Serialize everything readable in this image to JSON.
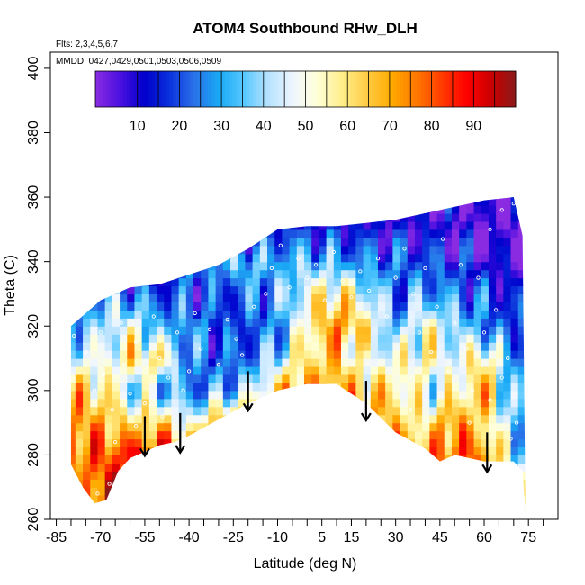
{
  "chart_data": {
    "type": "heatmap",
    "title": "ATOM4 Southbound RHw_DLH",
    "flights_label": "Flts: 2,3,4,5,6,7",
    "dates_label": "MMDD: 0427,0429,0501,0503,0506,0509",
    "xlabel": "Latitude (deg N)",
    "ylabel": "Theta (C)",
    "xlim": [
      -87,
      85
    ],
    "ylim": [
      260,
      405
    ],
    "x_tick_labels": [
      "-85",
      "-70",
      "-55",
      "-40",
      "-25",
      "-10",
      "5",
      "15",
      "30",
      "45",
      "60",
      "75"
    ],
    "x_ticks": [
      -85,
      -70,
      -55,
      -40,
      -25,
      -10,
      5,
      15,
      30,
      45,
      60,
      75
    ],
    "x_minor_ticks": [
      -80,
      -75,
      -65,
      -60,
      -50,
      -45,
      -35,
      -30,
      -20,
      -15,
      -5,
      0,
      10,
      20,
      25,
      35,
      40,
      50,
      55,
      65,
      70,
      80
    ],
    "y_tick_labels": [
      "260",
      "280",
      "300",
      "320",
      "340",
      "360",
      "380",
      "400"
    ],
    "y_ticks": [
      260,
      280,
      300,
      320,
      340,
      360,
      380,
      400
    ],
    "colorbar": {
      "range": [
        0,
        100
      ],
      "tick_labels": [
        "10",
        "20",
        "30",
        "40",
        "50",
        "60",
        "70",
        "80",
        "90"
      ],
      "ticks": [
        10,
        20,
        30,
        40,
        50,
        60,
        70,
        80,
        90
      ],
      "colors": [
        "#8a2be2",
        "#4b10e0",
        "#0000cc",
        "#0a32dc",
        "#2a70e8",
        "#19a9f5",
        "#56c8ff",
        "#b6e2ff",
        "#f0f6ff",
        "#ffffd6",
        "#ffee88",
        "#ffcc44",
        "#ffaa00",
        "#ff7700",
        "#ff3c00",
        "#ff0000",
        "#cc0000",
        "#8b1a1a"
      ]
    },
    "top_boundary": [
      [
        -80,
        320
      ],
      [
        -70,
        328
      ],
      [
        -60,
        332
      ],
      [
        -50,
        333
      ],
      [
        -40,
        336
      ],
      [
        -30,
        339
      ],
      [
        -20,
        344
      ],
      [
        -10,
        350
      ],
      [
        0,
        351
      ],
      [
        10,
        351
      ],
      [
        20,
        352
      ],
      [
        30,
        353
      ],
      [
        40,
        355
      ],
      [
        50,
        357
      ],
      [
        60,
        359
      ],
      [
        70,
        360
      ],
      [
        73,
        348
      ]
    ],
    "bottom_boundary": [
      [
        -80,
        277
      ],
      [
        -76,
        270
      ],
      [
        -72,
        265
      ],
      [
        -68,
        266
      ],
      [
        -64,
        275
      ],
      [
        -60,
        279
      ],
      [
        -55,
        281
      ],
      [
        -50,
        283
      ],
      [
        -45,
        284
      ],
      [
        -40,
        286
      ],
      [
        -30,
        291
      ],
      [
        -20,
        296
      ],
      [
        -10,
        300
      ],
      [
        0,
        302
      ],
      [
        10,
        302
      ],
      [
        20,
        296
      ],
      [
        30,
        287
      ],
      [
        40,
        282
      ],
      [
        45,
        278
      ],
      [
        50,
        280
      ],
      [
        60,
        278
      ],
      [
        70,
        278
      ],
      [
        73,
        275
      ],
      [
        74,
        262
      ]
    ],
    "surface_grid": {
      "lat": [
        -80,
        -70,
        -60,
        -50,
        -40,
        -30,
        -20,
        -10,
        0,
        10,
        20,
        30,
        40,
        50,
        60,
        70
      ],
      "theta": [
        270,
        280,
        290,
        300,
        310,
        320,
        330,
        340,
        350,
        360
      ],
      "rh": [
        [
          60,
          85,
          90,
          92,
          90,
          88,
          85,
          85,
          88,
          90,
          90,
          85,
          80,
          85,
          80,
          45
        ],
        [
          75,
          80,
          85,
          88,
          80,
          75,
          80,
          90,
          90,
          92,
          88,
          80,
          70,
          80,
          75,
          40
        ],
        [
          75,
          70,
          60,
          65,
          45,
          70,
          72,
          70,
          75,
          80,
          72,
          65,
          55,
          75,
          60,
          35
        ],
        [
          65,
          60,
          40,
          35,
          25,
          30,
          40,
          65,
          72,
          70,
          65,
          60,
          45,
          50,
          70,
          30
        ],
        [
          45,
          45,
          60,
          60,
          25,
          20,
          22,
          40,
          60,
          65,
          45,
          50,
          55,
          45,
          60,
          25
        ],
        [
          30,
          40,
          50,
          30,
          30,
          18,
          20,
          25,
          55,
          75,
          60,
          30,
          55,
          40,
          25,
          20
        ],
        [
          null,
          30,
          25,
          20,
          20,
          18,
          25,
          30,
          50,
          60,
          45,
          25,
          30,
          25,
          20,
          12
        ],
        [
          null,
          null,
          null,
          null,
          25,
          30,
          35,
          30,
          35,
          30,
          25,
          22,
          20,
          15,
          10,
          6
        ],
        [
          null,
          null,
          null,
          null,
          null,
          null,
          null,
          20,
          15,
          15,
          12,
          10,
          10,
          8,
          5,
          3
        ],
        [
          null,
          null,
          null,
          null,
          null,
          null,
          null,
          null,
          null,
          null,
          null,
          10,
          8,
          6,
          4,
          2
        ]
      ]
    },
    "arrows": [
      [
        -55,
        288
      ],
      [
        -43,
        289
      ],
      [
        -20,
        302
      ],
      [
        20,
        299
      ],
      [
        61,
        283
      ]
    ],
    "white_points": [
      [
        -82,
        319
      ],
      [
        -79,
        317
      ],
      [
        -75,
        312
      ],
      [
        -72,
        300
      ],
      [
        -70,
        318
      ],
      [
        -69,
        305
      ],
      [
        -66,
        294
      ],
      [
        -63,
        321
      ],
      [
        -62,
        308
      ],
      [
        -60,
        299
      ],
      [
        -58,
        315
      ],
      [
        -55,
        296
      ],
      [
        -52,
        323
      ],
      [
        -50,
        310
      ],
      [
        -49,
        292
      ],
      [
        -47,
        304
      ],
      [
        -44,
        318
      ],
      [
        -42,
        300
      ],
      [
        -38,
        324
      ],
      [
        -36,
        313
      ],
      [
        -33,
        319
      ],
      [
        -30,
        308
      ],
      [
        -27,
        322
      ],
      [
        -24,
        316
      ],
      [
        -22,
        311
      ],
      [
        -18,
        326
      ],
      [
        -14,
        330
      ],
      [
        -12,
        338
      ],
      [
        -9,
        345
      ],
      [
        -6,
        332
      ],
      [
        -3,
        341
      ],
      [
        0,
        335
      ],
      [
        3,
        339
      ],
      [
        6,
        328
      ],
      [
        9,
        343
      ],
      [
        12,
        334
      ],
      [
        15,
        329
      ],
      [
        18,
        337
      ],
      [
        21,
        331
      ],
      [
        24,
        341
      ],
      [
        27,
        323
      ],
      [
        30,
        335
      ],
      [
        33,
        344
      ],
      [
        36,
        330
      ],
      [
        38,
        318
      ],
      [
        40,
        338
      ],
      [
        42,
        312
      ],
      [
        44,
        326
      ],
      [
        46,
        347
      ],
      [
        48,
        306
      ],
      [
        50,
        321
      ],
      [
        52,
        339
      ],
      [
        54,
        313
      ],
      [
        56,
        300
      ],
      [
        58,
        335
      ],
      [
        60,
        318
      ],
      [
        62,
        350
      ],
      [
        64,
        325
      ],
      [
        66,
        356
      ],
      [
        68,
        310
      ],
      [
        70,
        358
      ],
      [
        71,
        290
      ],
      [
        -71,
        268
      ],
      [
        -67,
        271
      ],
      [
        -65,
        284
      ],
      [
        -58,
        289
      ],
      [
        -40,
        306
      ],
      [
        35,
        294
      ],
      [
        55,
        290
      ],
      [
        62,
        297
      ],
      [
        66,
        304
      ],
      [
        69,
        285
      ]
    ]
  }
}
